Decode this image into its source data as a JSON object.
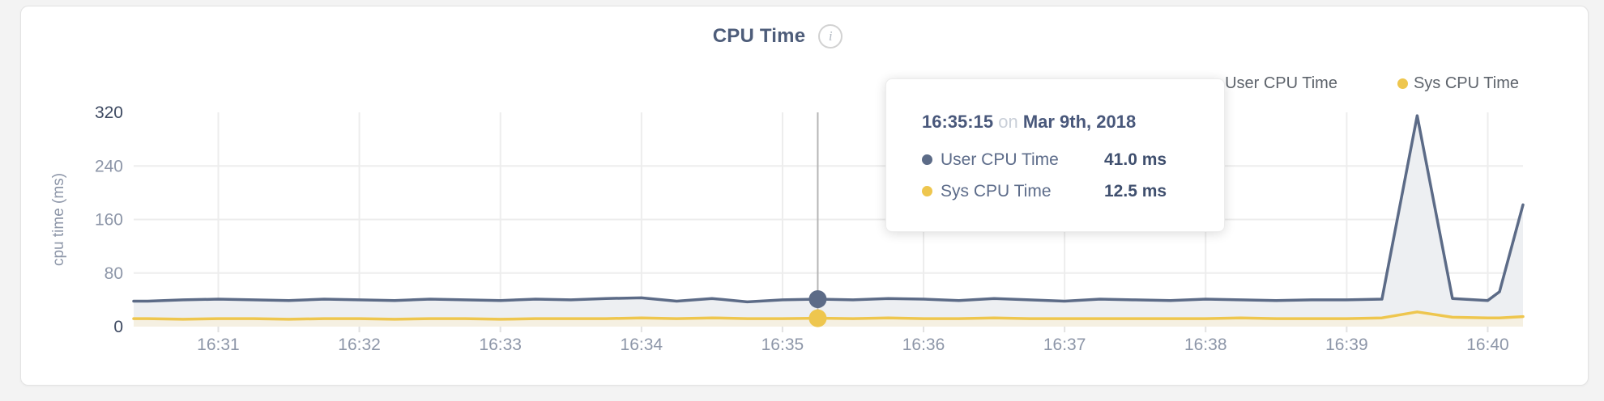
{
  "card": {
    "title": "CPU Time",
    "info_icon": "i"
  },
  "legend": [
    {
      "label": "User CPU Time",
      "color": "#5c6b87"
    },
    {
      "label": "Sys CPU Time",
      "color": "#eec64e"
    }
  ],
  "tooltip": {
    "time": "16:35:15",
    "connector": "on",
    "date": "Mar 9th, 2018",
    "rows": [
      {
        "label": "User CPU Time",
        "value": "41.0 ms"
      },
      {
        "label": "Sys CPU Time",
        "value": "12.5 ms"
      }
    ]
  },
  "colors": {
    "grid": "#ededed",
    "tick_mark": "#e2e2e2",
    "hover_line": "#b5b5b5",
    "xtick": "#8d96a8",
    "ytick_light": "#8d96a8",
    "ytick_dark": "#3d4961",
    "axis_title": "#8d96a8",
    "title": "#4e5d7a"
  },
  "chart_data": {
    "type": "area",
    "title": "CPU Time",
    "xlabel": "",
    "ylabel": "cpu time (ms)",
    "ylim": [
      0,
      320
    ],
    "yticks": [
      0,
      80,
      160,
      240,
      320
    ],
    "xticks": [
      "16:31",
      "16:32",
      "16:33",
      "16:34",
      "16:35",
      "16:36",
      "16:37",
      "16:38",
      "16:39",
      "16:40"
    ],
    "grid": true,
    "legend_position": "top-right",
    "x": [
      "16:30:30",
      "16:30:45",
      "16:31:00",
      "16:31:15",
      "16:31:30",
      "16:31:45",
      "16:32:00",
      "16:32:15",
      "16:32:30",
      "16:32:45",
      "16:33:00",
      "16:33:15",
      "16:33:30",
      "16:33:45",
      "16:34:00",
      "16:34:15",
      "16:34:30",
      "16:34:45",
      "16:35:00",
      "16:35:15",
      "16:35:30",
      "16:35:45",
      "16:36:00",
      "16:36:15",
      "16:36:30",
      "16:36:45",
      "16:37:00",
      "16:37:15",
      "16:37:30",
      "16:37:45",
      "16:38:00",
      "16:38:15",
      "16:38:30",
      "16:38:45",
      "16:39:00",
      "16:39:15",
      "16:39:30",
      "16:39:45",
      "16:40:00",
      "16:40:05",
      "16:40:15"
    ],
    "series": [
      {
        "name": "User CPU Time",
        "color": "#5c6b87",
        "fill": "#edeff2",
        "values": [
          38,
          40,
          41,
          40,
          39,
          41,
          40,
          39,
          41,
          40,
          39,
          41,
          40,
          42,
          43,
          38,
          42,
          37,
          40,
          41,
          40,
          42,
          41,
          39,
          42,
          40,
          38,
          41,
          40,
          39,
          41,
          40,
          39,
          40,
          40,
          41,
          315,
          42,
          39,
          52,
          182
        ]
      },
      {
        "name": "Sys CPU Time",
        "color": "#eec64e",
        "fill": "#f5f0e2",
        "values": [
          12,
          11,
          12,
          12,
          11,
          12,
          12,
          11,
          12,
          12,
          11,
          12,
          12,
          12,
          13,
          12,
          13,
          12,
          12,
          12.5,
          12,
          13,
          12,
          12,
          13,
          12,
          12,
          12,
          12,
          12,
          12,
          13,
          12,
          12,
          12,
          13,
          22,
          14,
          13,
          13,
          15
        ]
      }
    ],
    "hover": {
      "x": "16:35:15",
      "date": "Mar 9th, 2018",
      "values": [
        41.0,
        12.5
      ]
    }
  }
}
